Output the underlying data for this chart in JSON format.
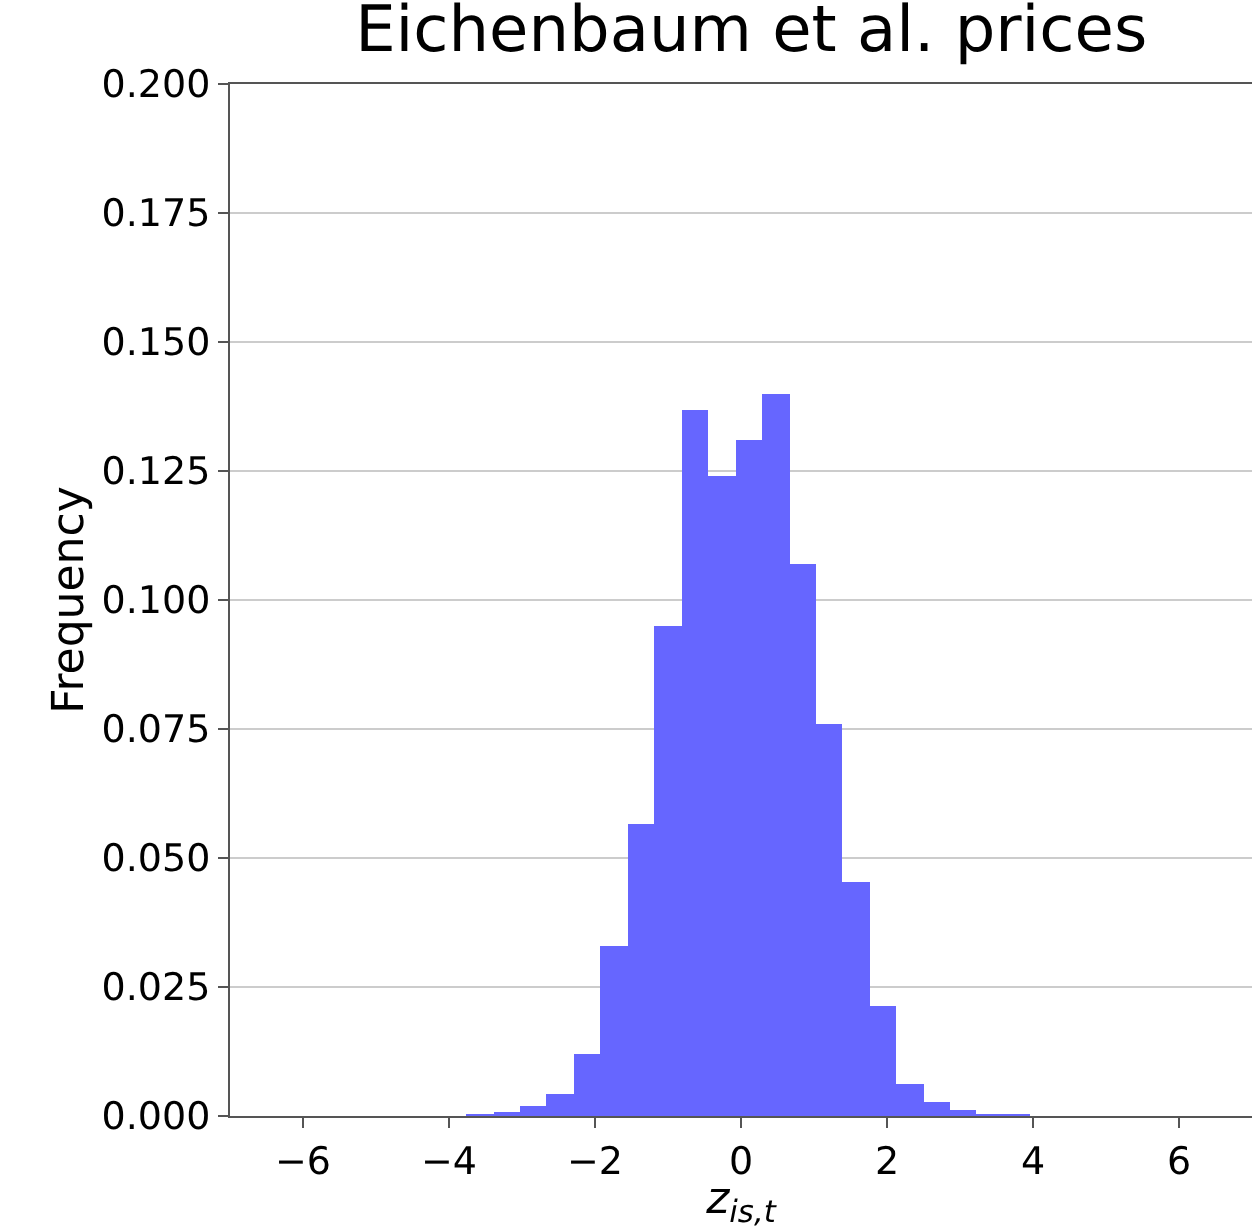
{
  "chart_data": {
    "type": "histogram",
    "title": "Eichenbaum et al. prices",
    "xlabel": "z$_{is,t}$",
    "ylabel": "Frequency",
    "bins": [
      -3.76,
      -3.39,
      -3.02,
      -2.66,
      -2.29,
      -1.92,
      -1.55,
      -1.18,
      -0.82,
      -0.45,
      -0.08,
      0.29,
      0.66,
      1.02,
      1.39,
      1.76,
      2.13,
      2.5,
      2.86,
      3.23,
      3.6,
      3.97
    ],
    "values": [
      0.0002,
      0.0004,
      0.0018,
      0.0041,
      0.0119,
      0.033,
      0.0565,
      0.095,
      0.137,
      0.124,
      0.131,
      0.14,
      0.107,
      0.076,
      0.0455,
      0.0215,
      0.0063,
      0.0027,
      0.0013,
      0.0003,
      0.0003
    ],
    "color": "#6666ff",
    "xlim": [
      -7,
      7
    ],
    "xticks": [
      {
        "value": -6,
        "label": "−6"
      },
      {
        "value": -4,
        "label": "−4"
      },
      {
        "value": -2,
        "label": "−2"
      },
      0,
      2,
      4,
      6
    ],
    "ylim": [
      0,
      0.2
    ],
    "yticks": [
      {
        "value": 0,
        "label": "0.000"
      },
      {
        "value": 0.025,
        "label": "0.025"
      },
      {
        "value": 0.05,
        "label": "0.050"
      },
      {
        "value": 0.075,
        "label": "0.075"
      },
      {
        "value": 0.1,
        "label": "0.100"
      },
      {
        "value": 0.125,
        "label": "0.125"
      },
      {
        "value": 0.15,
        "label": "0.150"
      },
      {
        "value": 0.175,
        "label": "0.175"
      },
      {
        "value": 0.2,
        "label": "0.200"
      }
    ],
    "grid": "y"
  }
}
